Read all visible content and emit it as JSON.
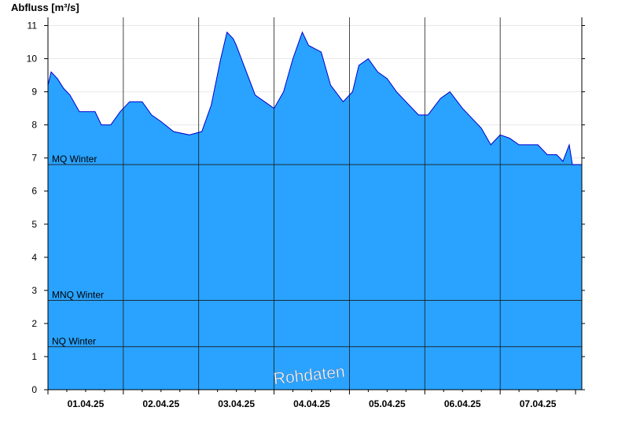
{
  "chart_data": {
    "type": "area",
    "ylabel": "Abfluss [m³/s]",
    "ylim": [
      0,
      11.25
    ],
    "yticks": [
      0,
      1,
      2,
      3,
      4,
      5,
      6,
      7,
      8,
      9,
      10,
      11
    ],
    "x_range": [
      "2025-03-31T12:00",
      "2025-04-07T14:00"
    ],
    "x_tick_labels": [
      {
        "date": "2025-04-01T00:00",
        "label": "01.04.25"
      },
      {
        "date": "2025-04-02T00:00",
        "label": "02.04.25"
      },
      {
        "date": "2025-04-03T00:00",
        "label": "03.04.25"
      },
      {
        "date": "2025-04-04T00:00",
        "label": "04.04.25"
      },
      {
        "date": "2025-04-05T00:00",
        "label": "05.04.25"
      },
      {
        "date": "2025-04-06T00:00",
        "label": "06.04.25"
      },
      {
        "date": "2025-04-07T00:00",
        "label": "07.04.25"
      }
    ],
    "series": [
      {
        "x": [
          "2025-03-31T12:00",
          "2025-03-31T13:00",
          "2025-03-31T15:00",
          "2025-03-31T17:00",
          "2025-03-31T19:00",
          "2025-03-31T22:00",
          "2025-04-01T03:00",
          "2025-04-01T05:00",
          "2025-04-01T08:00",
          "2025-04-01T11:00",
          "2025-04-01T14:00",
          "2025-04-01T18:00",
          "2025-04-01T21:00",
          "2025-04-02T00:00",
          "2025-04-02T04:00",
          "2025-04-02T09:00",
          "2025-04-02T13:00",
          "2025-04-02T16:00",
          "2025-04-02T19:00",
          "2025-04-02T21:00",
          "2025-04-02T23:00",
          "2025-04-03T00:00",
          "2025-04-03T02:00",
          "2025-04-03T06:00",
          "2025-04-03T09:00",
          "2025-04-03T12:00",
          "2025-04-03T15:00",
          "2025-04-03T18:00",
          "2025-04-03T21:00",
          "2025-04-03T23:00",
          "2025-04-04T03:00",
          "2025-04-04T06:00",
          "2025-04-04T10:00",
          "2025-04-04T13:00",
          "2025-04-04T15:00",
          "2025-04-04T18:00",
          "2025-04-04T21:00",
          "2025-04-05T00:00",
          "2025-04-05T03:00",
          "2025-04-05T06:00",
          "2025-04-05T10:00",
          "2025-04-05T13:00",
          "2025-04-05T17:00",
          "2025-04-05T20:00",
          "2025-04-06T00:00",
          "2025-04-06T03:00",
          "2025-04-06T06:00",
          "2025-04-06T09:00",
          "2025-04-06T12:00",
          "2025-04-06T15:00",
          "2025-04-06T18:00",
          "2025-04-06T21:00",
          "2025-04-07T00:00",
          "2025-04-07T03:00",
          "2025-04-07T06:00",
          "2025-04-07T08:00",
          "2025-04-07T10:00",
          "2025-04-07T11:00",
          "2025-04-07T14:00"
        ],
        "values": [
          9.2,
          9.6,
          9.4,
          9.1,
          8.9,
          8.4,
          8.4,
          8.0,
          8.0,
          8.4,
          8.7,
          8.7,
          8.3,
          8.1,
          7.8,
          7.7,
          7.8,
          8.6,
          10.0,
          10.8,
          10.6,
          10.4,
          9.9,
          8.9,
          8.7,
          8.5,
          9.0,
          10.0,
          10.8,
          10.4,
          10.2,
          9.2,
          8.7,
          9.0,
          9.8,
          10.0,
          9.6,
          9.4,
          9.0,
          8.7,
          8.3,
          8.3,
          8.8,
          9.0,
          8.5,
          8.2,
          7.9,
          7.4,
          7.7,
          7.6,
          7.4,
          7.4,
          7.4,
          7.1,
          7.1,
          6.9,
          7.4,
          6.8,
          6.8
        ]
      }
    ],
    "reference_lines": [
      {
        "label": "MQ Winter",
        "value": 6.8
      },
      {
        "label": "MNQ Winter",
        "value": 2.7
      },
      {
        "label": "NQ Winter",
        "value": 1.3
      }
    ],
    "watermark": "Rohdaten",
    "colors": {
      "fill": "#29a3ff",
      "line": "#0000cc",
      "grid": "#1a1a1a",
      "watermark": "#ffffff"
    },
    "grid": true
  }
}
